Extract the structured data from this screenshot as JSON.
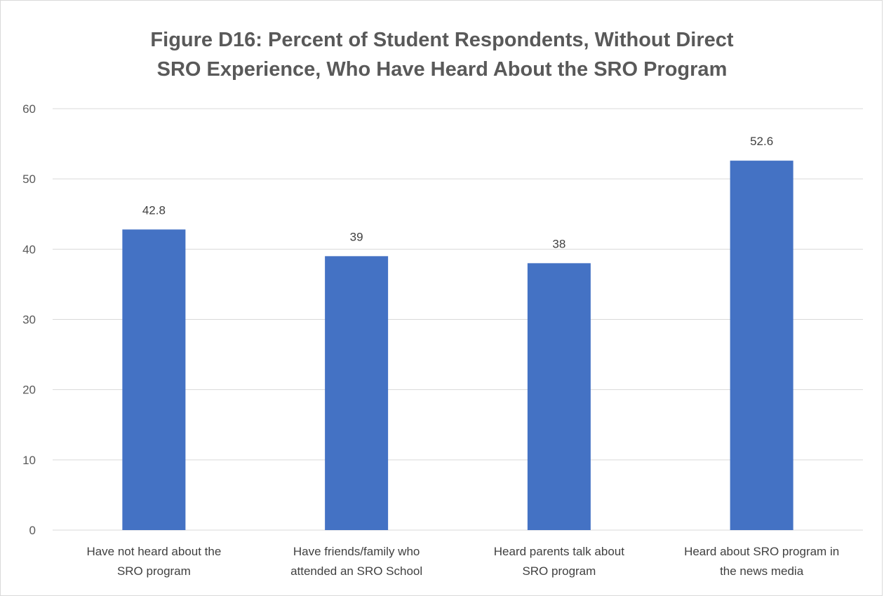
{
  "chart_data": {
    "type": "bar",
    "title_lines": [
      "Figure D16: Percent of Student Respondents, Without Direct",
      "SRO Experience, Who Have Heard About the SRO Program"
    ],
    "categories": [
      [
        "Have not heard about the",
        "SRO program"
      ],
      [
        "Have friends/family who",
        "attended an SRO School"
      ],
      [
        "Heard parents talk about",
        "SRO program"
      ],
      [
        "Heard about SRO program in",
        "the news media"
      ]
    ],
    "values": [
      42.8,
      39,
      38,
      52.6
    ],
    "data_labels": [
      "42.8",
      "39",
      "38",
      "52.6"
    ],
    "ylim": [
      0,
      60
    ],
    "yticks": [
      "0",
      "10",
      "20",
      "30",
      "40",
      "50",
      "60"
    ],
    "grid": true,
    "legend": "none",
    "bar_color": "#4472C4",
    "grid_color": "#d9d9d9"
  }
}
